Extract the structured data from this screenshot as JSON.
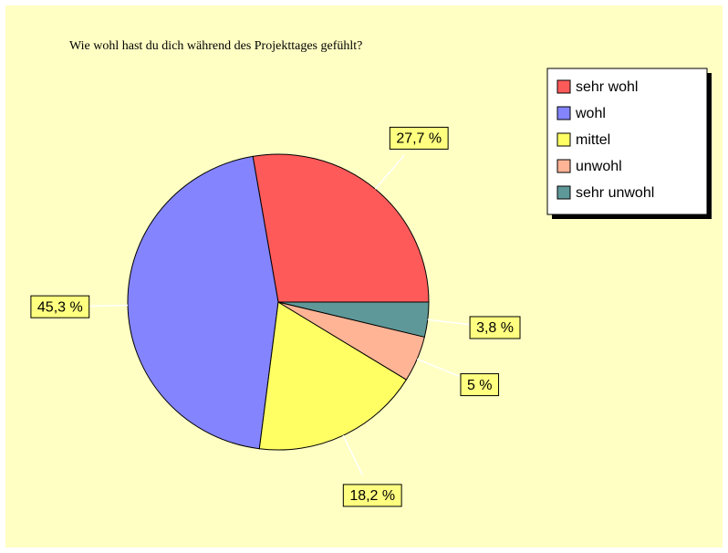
{
  "chart_data": {
    "type": "pie",
    "title": "Wie wohl hast du dich während des Projekttages gefühlt?",
    "categories": [
      "sehr wohl",
      "wohl",
      "mittel",
      "unwohl",
      "sehr unwohl"
    ],
    "values": [
      27.7,
      45.3,
      18.2,
      5,
      3.8
    ],
    "value_labels": [
      "27,7 %",
      "45,3 %",
      "18,2 %",
      "5 %",
      "3,8 %"
    ],
    "colors": [
      "#ff5a5a",
      "#8484ff",
      "#ffff64",
      "#ffb496",
      "#5f9898"
    ],
    "legend": "top-right"
  }
}
